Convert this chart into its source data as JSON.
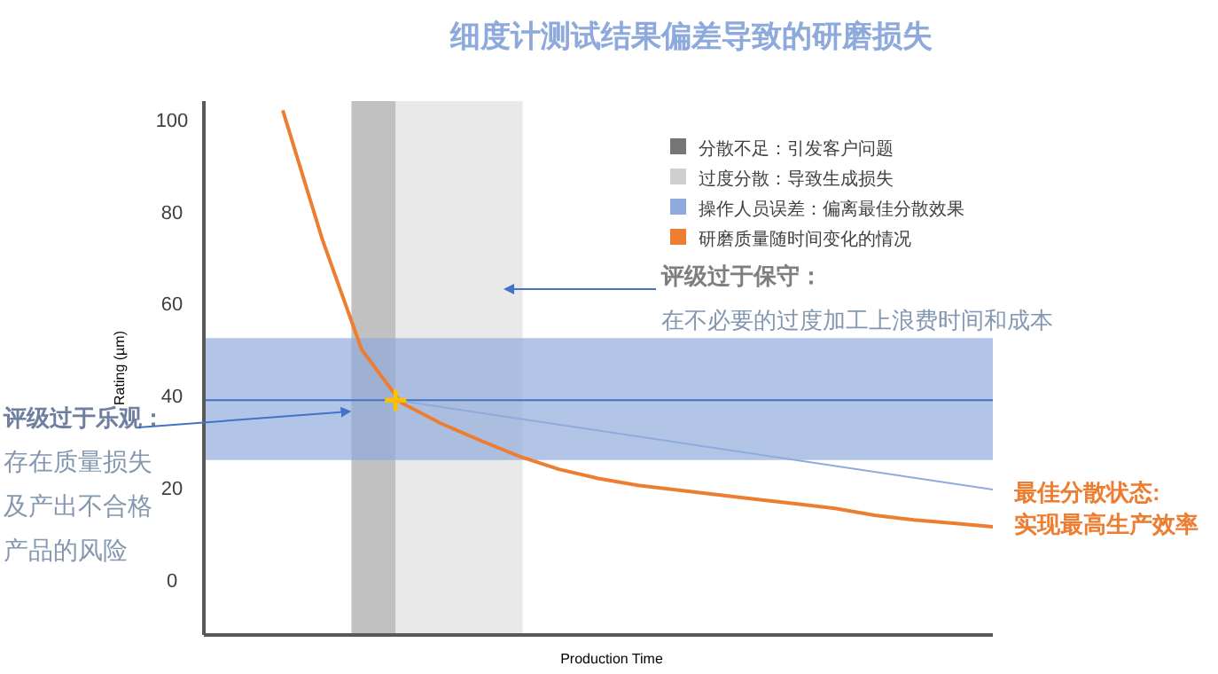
{
  "chart_data": {
    "type": "line",
    "title": "细度计测试结果偏差导致的研磨损失",
    "xlabel": "Production Time",
    "ylabel": "Rating (µm)",
    "categories": [
      null,
      null,
      null,
      null,
      null,
      null,
      null,
      null,
      null,
      null,
      null,
      null,
      null,
      null,
      null,
      null,
      null,
      null,
      null,
      null,
      null
    ],
    "ylim": [
      -12,
      104
    ],
    "yticks": [
      0,
      20,
      40,
      60,
      80,
      100
    ],
    "grid": false,
    "legend": "top right",
    "series": [
      {
        "name": "研磨质量随时间变化的情况",
        "color": "#ed7d31",
        "values": [
          null,
          null,
          102,
          74,
          50,
          38.5,
          34,
          30.3,
          26.8,
          24,
          22,
          20.5,
          19.5,
          18.5,
          17.5,
          16.5,
          15.5,
          14,
          13,
          12.3,
          11.5
        ]
      }
    ],
    "bands": [
      {
        "axis": "y",
        "from": 26,
        "to": 52.5,
        "label": "操作人员误差：偏离最佳分散效果",
        "color": "#8faadc"
      }
    ],
    "ref_lines": [
      {
        "axis": "y",
        "value": 39,
        "color": "#4472c4"
      }
    ],
    "annotations": [
      "分散不足：引发客户问题",
      "过度分散：导致生成损失",
      "评级过于保守：",
      "在不必要的过度加工上浪费时间和成本",
      "评级过于乐观：",
      "存在质量损失",
      "及产出不合格",
      "产品的风险",
      "最佳分散状态:",
      "实现最高生产效率"
    ]
  }
}
